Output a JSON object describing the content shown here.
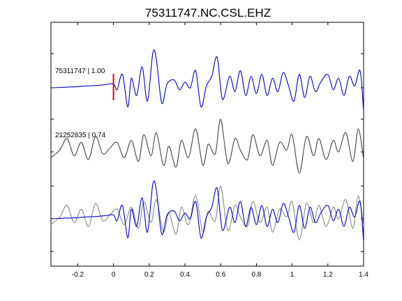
{
  "chart_data": {
    "type": "line",
    "title": "75311747.NC.CSL.EHZ",
    "xlabel": "",
    "ylabel": "",
    "xlim": [
      -0.35,
      1.4
    ],
    "x_ticks": [
      -0.2,
      0,
      0.2,
      0.4,
      0.6,
      0.8,
      1,
      1.2,
      1.4
    ],
    "x_tick_labels": [
      "-0.2",
      "0",
      "0.2",
      "0.4",
      "0.6",
      "0.8",
      "1",
      "1.2",
      "1.4"
    ],
    "grid": false,
    "pick": {
      "x": 0,
      "color": "#e00000"
    },
    "traces": [
      {
        "label": "75311747 | 1.00",
        "color": "#0000cc",
        "offset": 0
      },
      {
        "label": "21252835 | 0.74",
        "color": "#444444",
        "offset": 1
      },
      {
        "label": "",
        "color": "#888888",
        "offset": 2,
        "overlay": true
      },
      {
        "label": "",
        "color": "#0000cc",
        "offset": 2,
        "overlay": true
      }
    ],
    "series": [
      {
        "x": [
          -0.35,
          -0.3,
          -0.25,
          -0.2,
          -0.15,
          -0.1,
          -0.05,
          0,
          0.02,
          0.05,
          0.08,
          0.1,
          0.13,
          0.16,
          0.19,
          0.22,
          0.24,
          0.27,
          0.3,
          0.34,
          0.37,
          0.4,
          0.43,
          0.46,
          0.49,
          0.52,
          0.55,
          0.58,
          0.61,
          0.65,
          0.68,
          0.71,
          0.74,
          0.77,
          0.8,
          0.83,
          0.86,
          0.89,
          0.92,
          0.95,
          0.98,
          1.01,
          1.04,
          1.07,
          1.1,
          1.13,
          1.16,
          1.2,
          1.23,
          1.26,
          1.29,
          1.32,
          1.35,
          1.38,
          1.4
        ],
        "y": [
          0,
          0.01,
          0.02,
          0.03,
          0.05,
          0.06,
          0.08,
          0.1,
          -0.05,
          0.35,
          -0.5,
          0.25,
          -0.2,
          0.55,
          -0.35,
          0.9,
          0.75,
          -0.4,
          0.1,
          0.2,
          -0.05,
          0.15,
          0.0,
          0.45,
          -0.5,
          0.05,
          0.3,
          0.8,
          -0.3,
          0.3,
          -0.1,
          0.45,
          -0.2,
          0.3,
          -0.15,
          0.35,
          -0.2,
          0.25,
          -0.1,
          0.4,
          0.05,
          -0.35,
          0.35,
          -0.25,
          0.3,
          -0.1,
          0.15,
          0.35,
          -0.05,
          0.25,
          -0.2,
          0.3,
          0.05,
          0.45,
          -0.6
        ]
      },
      {
        "x": [
          -0.35,
          -0.3,
          -0.26,
          -0.22,
          -0.18,
          -0.14,
          -0.1,
          -0.06,
          -0.02,
          0.02,
          0.06,
          0.1,
          0.14,
          0.17,
          0.21,
          0.24,
          0.28,
          0.31,
          0.35,
          0.38,
          0.42,
          0.46,
          0.5,
          0.53,
          0.57,
          0.6,
          0.64,
          0.68,
          0.71,
          0.75,
          0.78,
          0.82,
          0.86,
          0.89,
          0.93,
          0.97,
          1.0,
          1.04,
          1.08,
          1.12,
          1.15,
          1.19,
          1.23,
          1.26,
          1.3,
          1.34,
          1.37,
          1.4
        ],
        "y": [
          -0.15,
          0.05,
          0.35,
          -0.1,
          0.25,
          -0.2,
          0.4,
          -0.05,
          0.1,
          0.25,
          -0.15,
          0.3,
          -0.25,
          0.45,
          -0.1,
          0.5,
          -0.35,
          0.15,
          -0.4,
          0.3,
          -0.15,
          0.6,
          -0.35,
          0.2,
          -0.05,
          0.85,
          -0.3,
          0.35,
          0.05,
          -0.2,
          0.45,
          -0.1,
          0.3,
          -0.35,
          0.25,
          0.05,
          0.45,
          -0.55,
          0.4,
          -0.1,
          0.35,
          -0.2,
          0.3,
          0.0,
          0.5,
          -0.25,
          0.6,
          -0.2
        ]
      },
      {
        "x": [
          -0.35,
          -0.3,
          -0.26,
          -0.22,
          -0.18,
          -0.14,
          -0.1,
          -0.06,
          -0.02,
          0.02,
          0.06,
          0.1,
          0.14,
          0.17,
          0.21,
          0.24,
          0.28,
          0.31,
          0.35,
          0.38,
          0.42,
          0.46,
          0.5,
          0.53,
          0.57,
          0.6,
          0.64,
          0.68,
          0.71,
          0.75,
          0.78,
          0.82,
          0.86,
          0.89,
          0.93,
          0.97,
          1.0,
          1.04,
          1.08,
          1.12,
          1.15,
          1.19,
          1.23,
          1.26,
          1.3,
          1.34,
          1.37,
          1.4
        ],
        "y": [
          -0.15,
          0.05,
          0.35,
          -0.1,
          0.25,
          -0.2,
          0.4,
          -0.05,
          0.1,
          0.25,
          -0.15,
          0.3,
          -0.25,
          0.45,
          -0.1,
          0.5,
          -0.35,
          0.15,
          -0.4,
          0.3,
          -0.15,
          0.6,
          -0.35,
          0.2,
          -0.05,
          0.85,
          -0.3,
          0.35,
          0.05,
          -0.2,
          0.45,
          -0.1,
          0.3,
          -0.35,
          0.25,
          0.05,
          0.45,
          -0.55,
          0.4,
          -0.1,
          0.35,
          -0.2,
          0.3,
          0.0,
          0.5,
          -0.25,
          0.6,
          -0.2
        ]
      },
      {
        "x": [
          -0.35,
          -0.3,
          -0.25,
          -0.2,
          -0.15,
          -0.1,
          -0.05,
          0,
          0.02,
          0.05,
          0.08,
          0.1,
          0.13,
          0.16,
          0.19,
          0.22,
          0.24,
          0.27,
          0.3,
          0.34,
          0.37,
          0.4,
          0.43,
          0.46,
          0.49,
          0.52,
          0.55,
          0.58,
          0.61,
          0.65,
          0.68,
          0.71,
          0.74,
          0.77,
          0.8,
          0.83,
          0.86,
          0.89,
          0.92,
          0.95,
          0.98,
          1.01,
          1.04,
          1.07,
          1.1,
          1.13,
          1.16,
          1.2,
          1.23,
          1.26,
          1.29,
          1.32,
          1.35,
          1.38,
          1.4
        ],
        "y": [
          0,
          0.01,
          0.02,
          0.03,
          0.05,
          0.06,
          0.08,
          0.1,
          -0.05,
          0.35,
          -0.5,
          0.25,
          -0.2,
          0.55,
          -0.35,
          0.9,
          0.75,
          -0.4,
          0.1,
          0.2,
          -0.05,
          0.15,
          0.0,
          0.45,
          -0.5,
          0.05,
          0.3,
          0.8,
          -0.3,
          0.3,
          -0.1,
          0.45,
          -0.2,
          0.3,
          -0.15,
          0.35,
          -0.2,
          0.25,
          -0.1,
          0.4,
          0.05,
          -0.35,
          0.35,
          -0.25,
          0.3,
          -0.1,
          0.15,
          0.35,
          -0.05,
          0.25,
          -0.2,
          0.3,
          0.05,
          0.45,
          -0.6
        ]
      }
    ]
  }
}
